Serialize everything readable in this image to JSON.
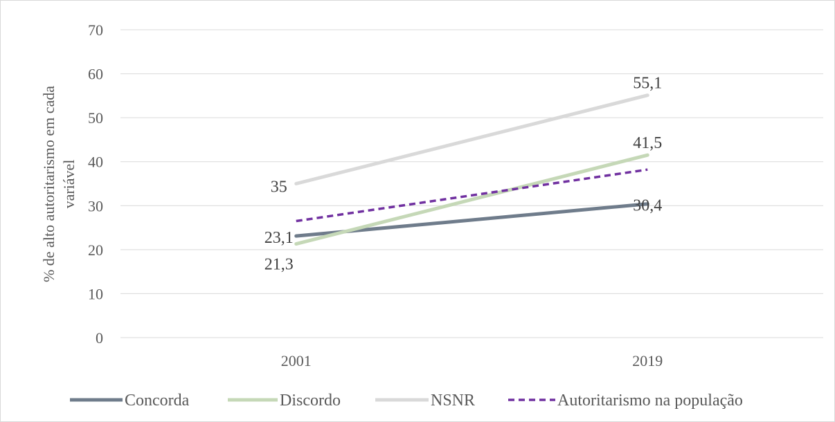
{
  "chart_data": {
    "type": "line",
    "title": "",
    "xlabel": "",
    "ylabel": "% de alto autoritarismo em cada variável",
    "ylabel_lines": [
      "% de alto autoritarismo em cada",
      "variável"
    ],
    "ylim": [
      0,
      70
    ],
    "yticks": [
      "0",
      "10",
      "20",
      "30",
      "40",
      "50",
      "60",
      "70"
    ],
    "categories": [
      "2001",
      "2019"
    ],
    "grid": true,
    "legend_position": "bottom",
    "series": [
      {
        "name": "Concorda",
        "values": [
          23.1,
          30.4
        ],
        "labels": [
          "23,1",
          "30,4"
        ],
        "color": "#6f7c8b",
        "dash": "solid"
      },
      {
        "name": "Discordo",
        "values": [
          21.3,
          41.5
        ],
        "labels": [
          "21,3",
          "41,5"
        ],
        "color": "#c5d8b7",
        "dash": "solid"
      },
      {
        "name": "NSNR",
        "values": [
          35,
          55.1
        ],
        "labels": [
          "35",
          "55,1"
        ],
        "color": "#d9d9d9",
        "dash": "solid"
      },
      {
        "name": "Autoritarismo na população",
        "values": [
          26.5,
          38.2
        ],
        "labels": [],
        "color": "#7030a0",
        "dash": "dashed"
      }
    ]
  }
}
